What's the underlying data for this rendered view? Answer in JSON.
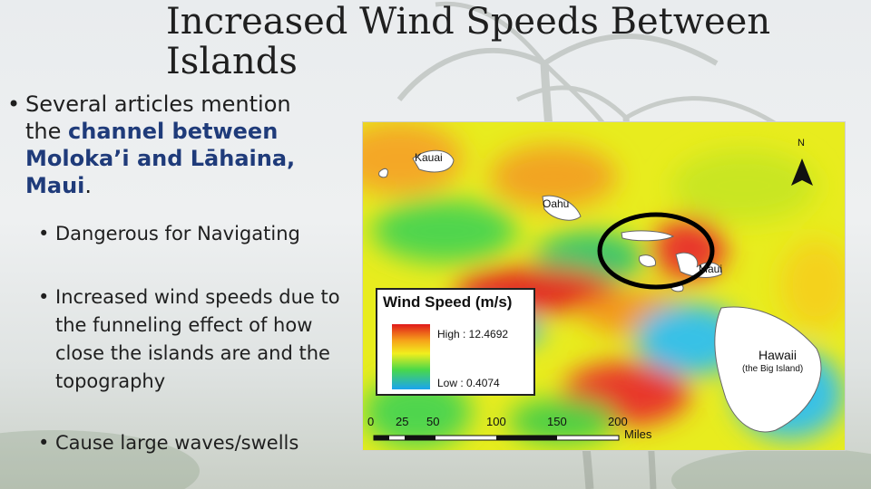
{
  "slide": {
    "title_line1": "Increased Wind Speeds Between",
    "title_line2": "Islands"
  },
  "bullets": {
    "main": {
      "prefix": "Several articles mention the ",
      "highlight": "channel between Moloka’i and Lāhaina, Maui",
      "suffix": "."
    },
    "sub1": "Dangerous for Navigating",
    "sub2": "Increased wind speeds due to the funneling effect of how close the islands are and the topography",
    "sub3": "Cause large waves/swells"
  },
  "map": {
    "legend_title": "Wind Speed (m/s)",
    "legend_high": "High : 12.4692",
    "legend_low": "Low : 0.4074",
    "islands": {
      "kauai": "Kauai",
      "oahu": "Oahu",
      "maui": "Maui",
      "hawaii": "Hawaii",
      "hawaii_sub": "(the Big Island)"
    },
    "north": "N",
    "scale": [
      "0",
      "25",
      "50",
      "100",
      "150",
      "200"
    ],
    "scale_unit": "Miles"
  },
  "colors": {
    "highlight": "#1f3b7a",
    "high": "#e01a1a",
    "mid": "#f2ee1d",
    "low": "#1aa4f0"
  }
}
